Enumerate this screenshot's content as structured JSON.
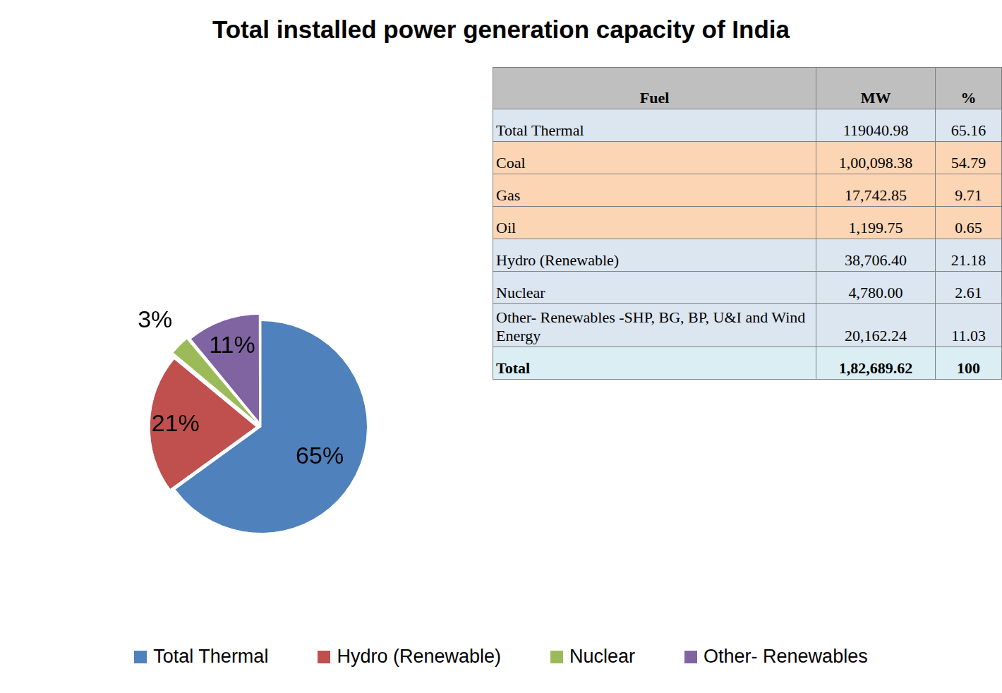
{
  "chart_data": {
    "type": "pie",
    "title": "Total installed power generation capacity of India",
    "categories": [
      "Total Thermal",
      "Hydro (Renewable)",
      "Nuclear",
      "Other- Renewables"
    ],
    "values": [
      65,
      21,
      3,
      11
    ],
    "value_labels": [
      "65%",
      "21%",
      "3%",
      "11%"
    ],
    "colors": [
      "#4f81bd",
      "#c0504d",
      "#9bbb59",
      "#8064a2"
    ],
    "data_labels": true,
    "legend": "bottom"
  },
  "table": {
    "header": [
      "Fuel",
      "MW",
      "%"
    ],
    "rows": [
      [
        "Total Thermal",
        "119040.98",
        "65.16"
      ],
      [
        "Coal",
        "1,00,098.38",
        "54.79"
      ],
      [
        "Gas",
        "17,742.85",
        "9.71"
      ],
      [
        "Oil",
        "1,199.75",
        "0.65"
      ],
      [
        "Hydro (Renewable)",
        "38,706.40",
        "21.18"
      ],
      [
        "Nuclear",
        "4,780.00",
        "2.61"
      ],
      [
        "Other- Renewables -SHP, BG, BP, U&I and Wind Energy",
        "20,162.24",
        "11.03"
      ],
      [
        "Total",
        "1,82,689.62",
        "100"
      ]
    ]
  }
}
